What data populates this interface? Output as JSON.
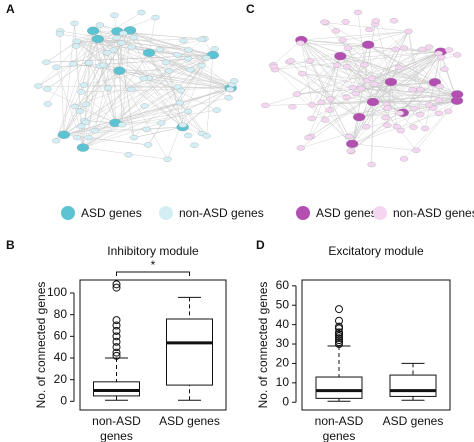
{
  "networks": [
    {
      "panel": "A",
      "legend": [
        {
          "label": "ASD genes",
          "color": "#5cc3d2"
        },
        {
          "label": "non-ASD genes",
          "color": "#d3eff5"
        }
      ]
    },
    {
      "panel": "C",
      "legend": [
        {
          "label": "ASD genes",
          "color": "#b44fb2"
        },
        {
          "label": "non-ASD genes",
          "color": "#f5d6f1"
        }
      ]
    }
  ],
  "chart_data": [
    {
      "type": "box",
      "panel": "B",
      "title": "Inhibitory module",
      "y_label": "No. of connected genes",
      "categories": [
        "non-ASD genes",
        "ASD genes"
      ],
      "boxes": [
        {
          "whislo": 1,
          "q1": 5,
          "med": 10,
          "q3": 18,
          "whishi": 40,
          "fliers": [
            42,
            45,
            50,
            55,
            60,
            65,
            70,
            75,
            105,
            108
          ]
        },
        {
          "whislo": 1,
          "q1": 15,
          "med": 54,
          "q3": 76,
          "whishi": 96,
          "fliers": []
        }
      ],
      "annotation": "*",
      "ylim": [
        -8,
        112
      ],
      "yticks": [
        0,
        20,
        40,
        60,
        80,
        100
      ]
    },
    {
      "type": "box",
      "panel": "D",
      "title": "Excitatory module",
      "y_label": "No. of connected genes",
      "categories": [
        "non-ASD genes",
        "ASD genes"
      ],
      "boxes": [
        {
          "whislo": 0.5,
          "q1": 2,
          "med": 6,
          "q3": 13,
          "whishi": 29,
          "fliers": [
            30,
            31,
            32,
            33,
            34,
            35,
            36,
            38,
            39,
            42,
            48
          ]
        },
        {
          "whislo": 1,
          "q1": 3,
          "med": 6,
          "q3": 14,
          "whishi": 20,
          "fliers": []
        }
      ],
      "ylim": [
        -4,
        63
      ],
      "yticks": [
        0,
        10,
        20,
        30,
        40,
        50,
        60
      ]
    }
  ]
}
